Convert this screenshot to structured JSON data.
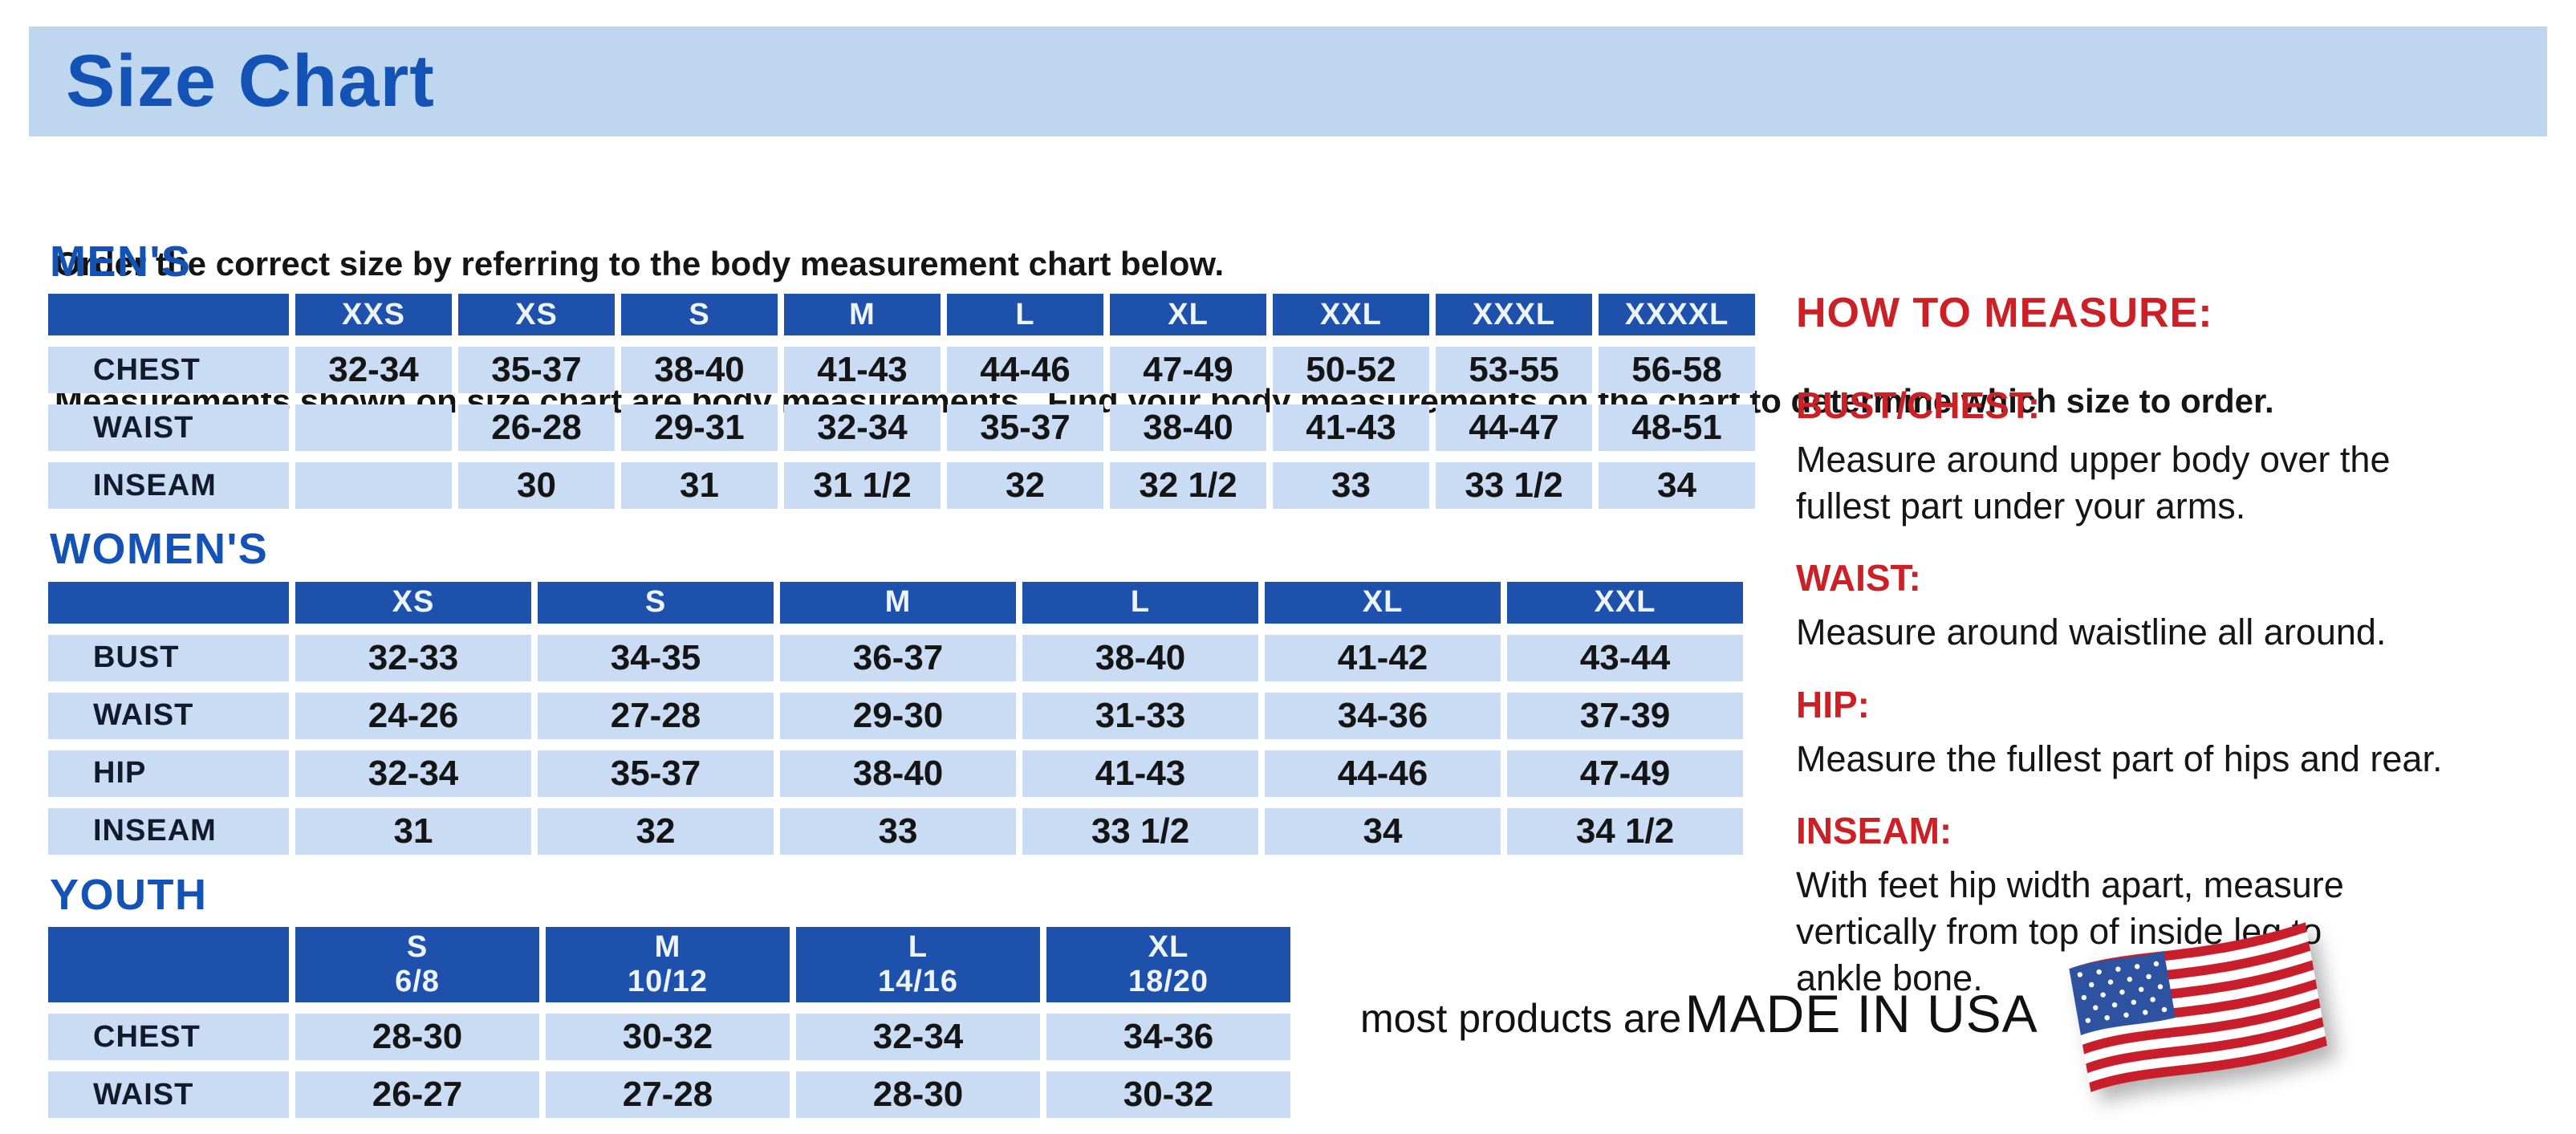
{
  "title": "Size Chart",
  "intro": {
    "line1": "Order the correct size by referring to the body measurement chart below.",
    "line2": "Measurements shown on size chart are body measurements.  Find your body measurements on the chart to determine which size to order."
  },
  "colors": {
    "accent_blue": "#1353b5",
    "table_header_blue": "#1e51ab",
    "table_row_blue": "#c9dcf4",
    "title_bar_blue": "#bfd6ef",
    "measure_red": "#cc2027",
    "flag_red": "#c81d2a",
    "flag_white": "#ffffff",
    "flag_blue": "#2c52a0"
  },
  "sections": [
    {
      "heading": "MEN'S",
      "columns": [
        "",
        "XXS",
        "XS",
        "S",
        "M",
        "L",
        "XL",
        "XXL",
        "XXXL",
        "XXXXL"
      ],
      "rows": [
        {
          "label": "CHEST",
          "values": [
            "32-34",
            "35-37",
            "38-40",
            "41-43",
            "44-46",
            "47-49",
            "50-52",
            "53-55",
            "56-58"
          ]
        },
        {
          "label": "WAIST",
          "values": [
            "",
            "26-28",
            "29-31",
            "32-34",
            "35-37",
            "38-40",
            "41-43",
            "44-47",
            "48-51"
          ]
        },
        {
          "label": "INSEAM",
          "values": [
            "",
            "30",
            "31",
            "31 1/2",
            "32",
            "32 1/2",
            "33",
            "33 1/2",
            "34"
          ]
        }
      ]
    },
    {
      "heading": "WOMEN'S",
      "columns": [
        "",
        "XS",
        "S",
        "M",
        "L",
        "XL",
        "XXL"
      ],
      "rows": [
        {
          "label": "BUST",
          "values": [
            "32-33",
            "34-35",
            "36-37",
            "38-40",
            "41-42",
            "43-44"
          ]
        },
        {
          "label": "WAIST",
          "values": [
            "24-26",
            "27-28",
            "29-30",
            "31-33",
            "34-36",
            "37-39"
          ]
        },
        {
          "label": "HIP",
          "values": [
            "32-34",
            "35-37",
            "38-40",
            "41-43",
            "44-46",
            "47-49"
          ]
        },
        {
          "label": "INSEAM",
          "values": [
            "31",
            "32",
            "33",
            "33 1/2",
            "34",
            "34 1/2"
          ]
        }
      ]
    },
    {
      "heading": "YOUTH",
      "columns": [
        "",
        "S\n6/8",
        "M\n10/12",
        "L\n14/16",
        "XL\n18/20"
      ],
      "rows": [
        {
          "label": "CHEST",
          "values": [
            "28-30",
            "30-32",
            "32-34",
            "34-36"
          ]
        },
        {
          "label": "WAIST",
          "values": [
            "26-27",
            "27-28",
            "28-30",
            "30-32"
          ]
        }
      ]
    }
  ],
  "how_to_measure": {
    "title": "HOW TO MEASURE:",
    "items": [
      {
        "term": "BUST/CHEST:",
        "desc": "Measure around upper body over the\nfullest part under your arms."
      },
      {
        "term": "WAIST:",
        "desc": "Measure around waistline all around."
      },
      {
        "term": "HIP:",
        "desc": "Measure the fullest part of hips and rear."
      },
      {
        "term": "INSEAM:",
        "desc": "With feet hip width apart, measure\nvertically from top of inside leg to\nankle bone."
      }
    ]
  },
  "footer": {
    "prefix": "most products are",
    "made_in": "MADE IN USA",
    "flag_icon": "us-flag"
  }
}
